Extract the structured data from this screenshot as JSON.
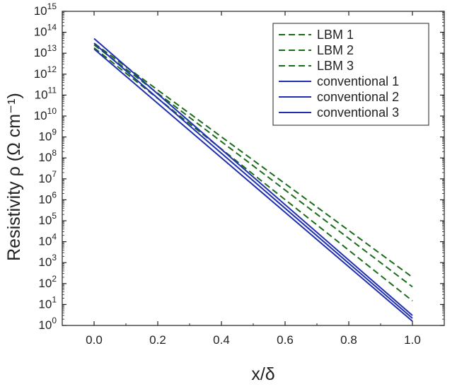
{
  "chart_data": {
    "type": "line",
    "xlabel": "x/δ",
    "ylabel": "Resistivity ρ (Ω cm⁻¹)",
    "xlim": [
      -0.1,
      1.1
    ],
    "ylim_log10": [
      0,
      15
    ],
    "y_scale": "log",
    "x_ticks": [
      "0.0",
      "0.2",
      "0.4",
      "0.6",
      "0.8",
      "1.0"
    ],
    "y_ticks": [
      {
        "base": "10",
        "exp": "0"
      },
      {
        "base": "10",
        "exp": "1"
      },
      {
        "base": "10",
        "exp": "2"
      },
      {
        "base": "10",
        "exp": "3"
      },
      {
        "base": "10",
        "exp": "4"
      },
      {
        "base": "10",
        "exp": "5"
      },
      {
        "base": "10",
        "exp": "6"
      },
      {
        "base": "10",
        "exp": "7"
      },
      {
        "base": "10",
        "exp": "8"
      },
      {
        "base": "10",
        "exp": "9"
      },
      {
        "base": "10",
        "exp": "10"
      },
      {
        "base": "10",
        "exp": "11"
      },
      {
        "base": "10",
        "exp": "12"
      },
      {
        "base": "10",
        "exp": "13"
      },
      {
        "base": "10",
        "exp": "14"
      },
      {
        "base": "10",
        "exp": "15"
      }
    ],
    "grid": false,
    "legend_position": "top-right",
    "series": [
      {
        "name": "LBM 1",
        "style": "dashed",
        "color": "#1a6b1a",
        "x": [
          0,
          1
        ],
        "y": [
          30000000000000.0,
          200
        ]
      },
      {
        "name": "LBM 2",
        "style": "dashed",
        "color": "#1a6b1a",
        "x": [
          0,
          1
        ],
        "y": [
          25000000000000.0,
          70
        ]
      },
      {
        "name": "LBM 3",
        "style": "dashed",
        "color": "#1a6b1a",
        "x": [
          0,
          1
        ],
        "y": [
          18000000000000.0,
          15
        ]
      },
      {
        "name": "conventional 1",
        "style": "solid",
        "color": "#1f2fb0",
        "x": [
          0,
          1
        ],
        "y": [
          50000000000000.0,
          3
        ]
      },
      {
        "name": "conventional 2",
        "style": "solid",
        "color": "#1f2fb0",
        "x": [
          0,
          1
        ],
        "y": [
          30000000000000.0,
          2.2
        ]
      },
      {
        "name": "conventional 3",
        "style": "solid",
        "color": "#1f2fb0",
        "x": [
          0,
          1
        ],
        "y": [
          16000000000000.0,
          1.6
        ]
      }
    ]
  }
}
